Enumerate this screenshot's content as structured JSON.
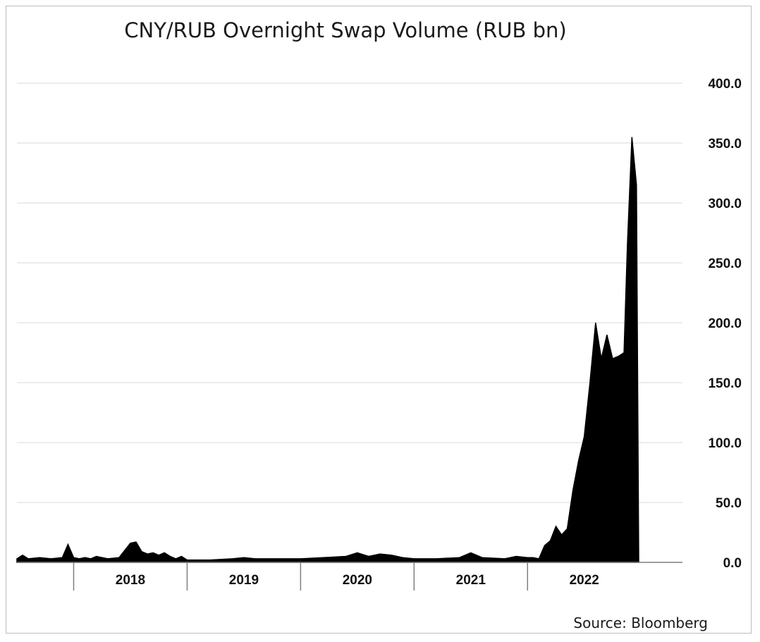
{
  "chart_data": {
    "type": "area",
    "title": "CNY/RUB Overnight Swap Volume (RUB bn)",
    "source": "Source: Bloomberg",
    "ylim": [
      0,
      400
    ],
    "ytick_labels": [
      "0.0",
      "50.0",
      "100.0",
      "150.0",
      "200.0",
      "250.0",
      "300.0",
      "350.0",
      "400.0"
    ],
    "y_axis_position": "right",
    "grid": "horizontal",
    "legend": "none",
    "color": "#000000",
    "x_start": 2017.5,
    "x_end": 2022.98,
    "categories": [
      "2018",
      "2019",
      "2020",
      "2021",
      "2022"
    ],
    "series": [
      {
        "x": [
          2017.5,
          2017.55,
          2017.6,
          2017.7,
          2017.8,
          2017.9,
          2017.95,
          2018.0,
          2018.05,
          2018.1,
          2018.15,
          2018.2,
          2018.3,
          2018.4,
          2018.5,
          2018.55,
          2018.6,
          2018.65,
          2018.7,
          2018.75,
          2018.8,
          2018.85,
          2018.9,
          2018.95,
          2019.0,
          2019.2,
          2019.4,
          2019.5,
          2019.6,
          2019.8,
          2020.0,
          2020.2,
          2020.4,
          2020.5,
          2020.6,
          2020.7,
          2020.8,
          2020.9,
          2021.0,
          2021.2,
          2021.4,
          2021.5,
          2021.6,
          2021.8,
          2021.9,
          2022.0,
          2022.05,
          2022.1,
          2022.15,
          2022.2,
          2022.25,
          2022.3,
          2022.35,
          2022.4,
          2022.45,
          2022.5,
          2022.55,
          2022.6,
          2022.65,
          2022.7,
          2022.75,
          2022.8,
          2022.85,
          2022.88,
          2022.92,
          2022.96,
          2022.98
        ],
        "y": [
          3,
          6,
          3,
          4,
          3,
          4,
          15,
          4,
          3,
          4,
          3,
          5,
          3,
          4,
          16,
          17,
          9,
          7,
          8,
          6,
          8,
          5,
          3,
          5,
          2,
          2,
          3,
          4,
          3,
          3,
          3,
          4,
          5,
          8,
          5,
          7,
          6,
          4,
          3,
          3,
          4,
          8,
          4,
          3,
          5,
          4,
          4,
          3,
          14,
          18,
          30,
          23,
          28,
          60,
          85,
          105,
          150,
          200,
          170,
          190,
          170,
          172,
          175,
          265,
          355,
          315,
          0
        ]
      }
    ]
  }
}
